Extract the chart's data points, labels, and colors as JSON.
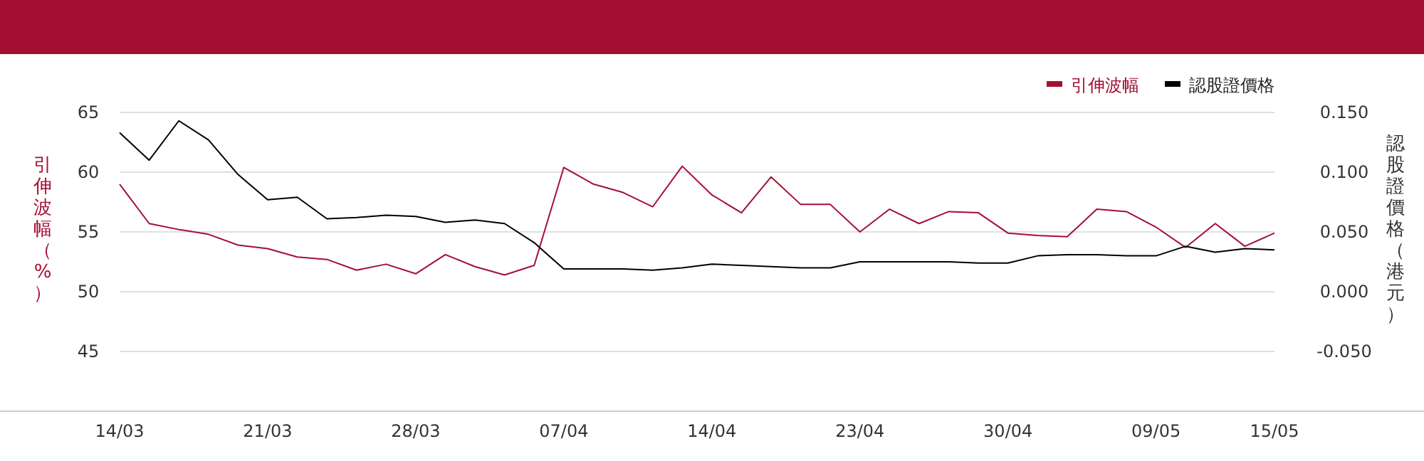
{
  "chart_data": {
    "type": "line",
    "ylabel": "引伸波幅（%）",
    "y2label": "認股證價格（港元）",
    "categories": [
      "14/03",
      null,
      null,
      null,
      null,
      "21/03",
      null,
      null,
      null,
      null,
      "28/03",
      null,
      null,
      null,
      null,
      "07/04",
      null,
      null,
      null,
      null,
      "14/04",
      null,
      null,
      null,
      null,
      "23/04",
      null,
      null,
      null,
      null,
      "30/04",
      null,
      null,
      null,
      null,
      "09/05",
      null,
      null,
      null,
      "15/05"
    ],
    "series": [
      {
        "name": "引伸波幅",
        "color": "#a50e33",
        "values": [
          59.0,
          55.7,
          55.2,
          54.8,
          53.9,
          53.6,
          52.9,
          52.7,
          51.8,
          52.3,
          51.5,
          53.1,
          52.1,
          51.4,
          52.2,
          60.4,
          59.0,
          58.3,
          57.1,
          60.5,
          58.1,
          56.6,
          59.6,
          57.3,
          57.3,
          55.0,
          56.9,
          55.7,
          56.7,
          56.6,
          54.9,
          54.7,
          54.6,
          56.9,
          56.7,
          55.4,
          53.7,
          55.7,
          53.8,
          54.9
        ]
      },
      {
        "name": "認股證價格",
        "color": "#000000",
        "axis": "y2",
        "values": [
          0.133,
          0.11,
          0.143,
          0.127,
          0.098,
          0.077,
          0.079,
          0.061,
          0.062,
          0.064,
          0.063,
          0.058,
          0.06,
          0.057,
          0.041,
          0.019,
          0.019,
          0.019,
          0.018,
          0.02,
          0.023,
          0.022,
          0.021,
          0.02,
          0.02,
          0.025,
          0.025,
          0.025,
          0.025,
          0.024,
          0.024,
          0.03,
          0.031,
          0.031,
          0.03,
          0.03,
          0.038,
          0.033,
          0.036,
          0.035
        ]
      }
    ],
    "ylim": [
      40,
      65
    ],
    "yticks": [
      45,
      50,
      55,
      60,
      65
    ],
    "y2lim": [
      -0.1,
      0.15
    ],
    "y2ticks": [
      {
        "value": -0.05,
        "label": "-0.050"
      },
      {
        "value": 0,
        "label": "0.000"
      },
      {
        "value": 0.05,
        "label": "0.050"
      },
      {
        "value": 0.1,
        "label": "0.100"
      },
      {
        "value": 0.15,
        "label": "0.150"
      }
    ],
    "grid": "y",
    "legend": "top right",
    "marker": "none",
    "line_style": "solid"
  }
}
